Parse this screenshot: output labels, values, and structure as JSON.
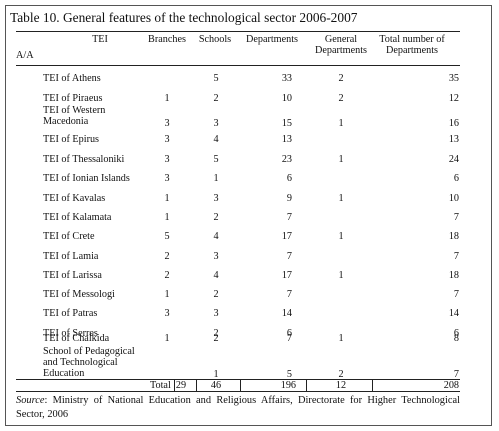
{
  "title": "Table 10. General features of the technological sector 2006-2007",
  "headers": {
    "tei": "TEI",
    "aa": "A/A",
    "branches": "Branches",
    "schools": "Schools",
    "departments": "Departments",
    "general_l1": "General",
    "general_l2": "Departments",
    "total_l1": "Total number of",
    "total_l2": "Departments"
  },
  "rows": [
    {
      "name": [
        "TEI of Athens"
      ],
      "branches": "",
      "schools": "5",
      "departments": "33",
      "general": "2",
      "total": "35"
    },
    {
      "name": [
        "TEI of Piraeus"
      ],
      "branches": "1",
      "schools": "2",
      "departments": "10",
      "general": "2",
      "total": "12"
    },
    {
      "name": [
        "TEI of Western",
        "Macedonia"
      ],
      "branches": "3",
      "schools": "3",
      "departments": "15",
      "general": "1",
      "total": "16"
    },
    {
      "name": [
        "TEI of Epirus"
      ],
      "branches": "3",
      "schools": "4",
      "departments": "13",
      "general": "",
      "total": "13"
    },
    {
      "name": [
        "TEI of Thessaloniki"
      ],
      "branches": "3",
      "schools": "5",
      "departments": "23",
      "general": "1",
      "total": "24"
    },
    {
      "name": [
        "TEI of Ionian Islands"
      ],
      "branches": "3",
      "schools": "1",
      "departments": "6",
      "general": "",
      "total": "6"
    },
    {
      "name": [
        "TEI of Kavalas"
      ],
      "branches": "1",
      "schools": "3",
      "departments": "9",
      "general": "1",
      "total": "10"
    },
    {
      "name": [
        "TEI of Kalamata"
      ],
      "branches": "1",
      "schools": "2",
      "departments": "7",
      "general": "",
      "total": "7"
    },
    {
      "name": [
        "TEI of Crete"
      ],
      "branches": "5",
      "schools": "4",
      "departments": "17",
      "general": "1",
      "total": "18"
    },
    {
      "name": [
        "TEI of Lamia"
      ],
      "branches": "2",
      "schools": "3",
      "departments": "7",
      "general": "",
      "total": "7"
    },
    {
      "name": [
        "TEI of Larissa"
      ],
      "branches": "2",
      "schools": "4",
      "departments": "17",
      "general": "1",
      "total": "18"
    },
    {
      "name": [
        "TEI of Messologi"
      ],
      "branches": "1",
      "schools": "2",
      "departments": "7",
      "general": "",
      "total": "7"
    },
    {
      "name": [
        "TEI of Patras"
      ],
      "branches": "3",
      "schools": "3",
      "departments": "14",
      "general": "",
      "total": "14"
    },
    {
      "name": [
        "TEI of Serres"
      ],
      "branches": "",
      "schools": "2",
      "departments": "6",
      "general": "",
      "total": "6"
    },
    {
      "name": [
        "TEI of Chalkida"
      ],
      "branches": "1",
      "schools": "2",
      "departments": "7",
      "general": "1",
      "total": "8"
    },
    {
      "name": [
        "School of Pedagogical",
        "and Technological",
        "Education"
      ],
      "branches": "",
      "schools": "1",
      "departments": "5",
      "general": "2",
      "total": "7"
    }
  ],
  "totals": {
    "label": "Total",
    "branches": "29",
    "schools": "46",
    "departments": "196",
    "general": "12",
    "total": "208"
  },
  "source": {
    "label": "Source",
    "text": ": Ministry of National Education and Religious Affairs, Directorate for Higher Technological Sector, 2006"
  }
}
